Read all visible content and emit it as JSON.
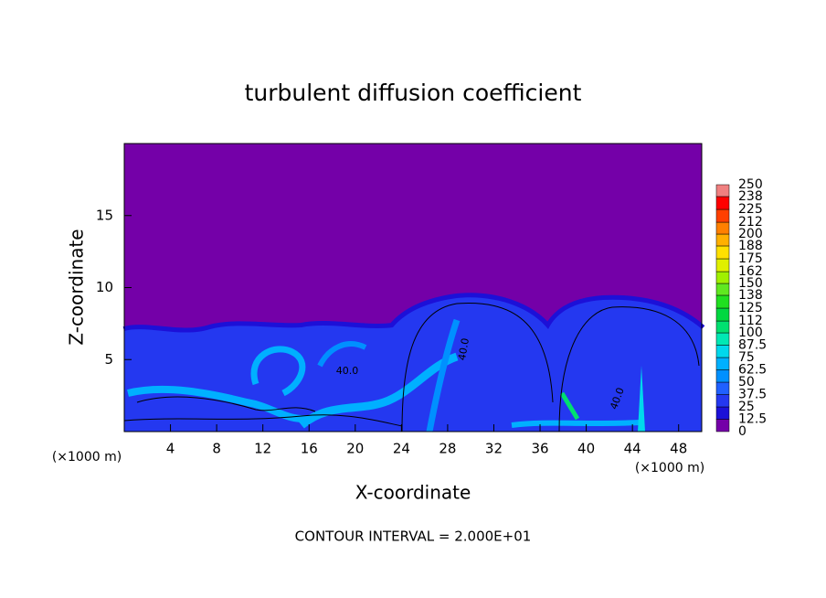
{
  "chart_data": {
    "type": "contour",
    "title": "turbulent diffusion coefficient",
    "x_label": "X-coordinate",
    "y_label": "Z-coordinate",
    "x_unit_label": "(×1000 m)",
    "y_unit_label": "(×1000 m)",
    "footnote": "CONTOUR INTERVAL = 2.000E+01",
    "contour_labels": [
      "40.0",
      "40.0",
      "40.0"
    ],
    "xlim": [
      0,
      50
    ],
    "ylim": [
      0,
      20
    ],
    "xticks": [
      4,
      8,
      12,
      16,
      20,
      24,
      28,
      32,
      36,
      40,
      44,
      48
    ],
    "yticks": [
      5,
      10,
      15
    ],
    "grid": false,
    "colorbar": {
      "levels": [
        0,
        12.5,
        25,
        37.5,
        50,
        62.5,
        75,
        87.5,
        100,
        112,
        125,
        138,
        150,
        162,
        175,
        188,
        200,
        212,
        225,
        238,
        250
      ],
      "colors": [
        "#7400a8",
        "#1c10d8",
        "#2438f0",
        "#2060ff",
        "#0090ff",
        "#00b0ff",
        "#00d8ec",
        "#00e8b4",
        "#00e070",
        "#00d840",
        "#20e020",
        "#60e820",
        "#a0f000",
        "#e0f000",
        "#ffe000",
        "#ffb000",
        "#ff8000",
        "#ff4000",
        "#ff0000",
        "#f08080"
      ]
    }
  }
}
